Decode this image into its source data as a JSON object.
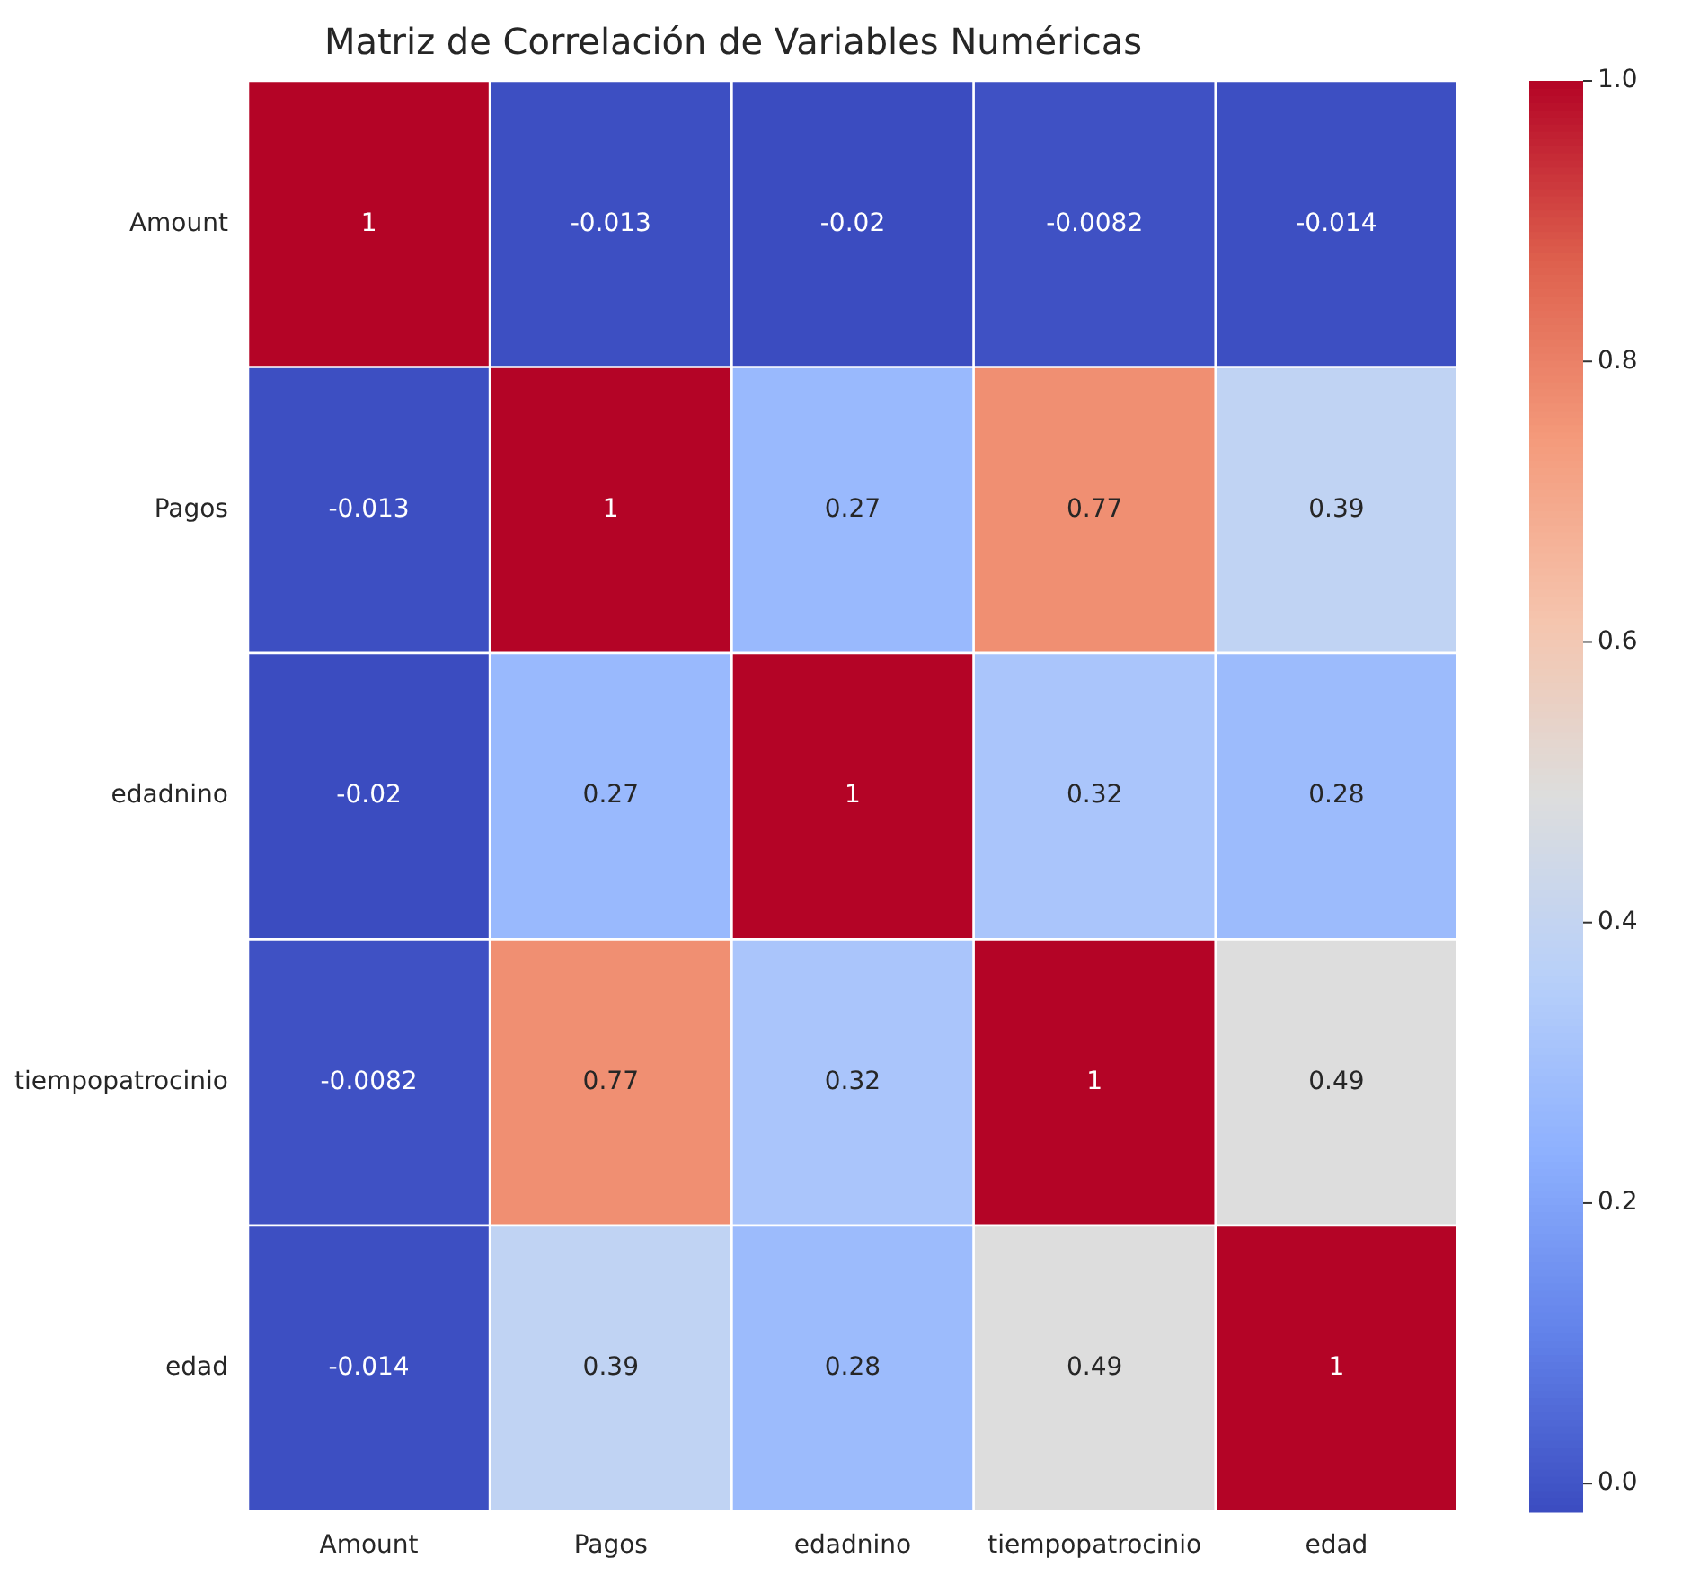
{
  "chart_data": {
    "type": "heatmap",
    "title": "Matriz de Correlación de Variables Numéricas",
    "categories": [
      "Amount",
      "Pagos",
      "edadnino",
      "tiempopatrocinio",
      "edad"
    ],
    "y_categories": [
      "Amount",
      "Pagos",
      "edadnino",
      "tiempopatrocinio",
      "edad"
    ],
    "cells": [
      [
        1,
        -0.013,
        -0.02,
        -0.0082,
        -0.014
      ],
      [
        -0.013,
        1,
        0.27,
        0.77,
        0.39
      ],
      [
        -0.02,
        0.27,
        1,
        0.32,
        0.28
      ],
      [
        -0.0082,
        0.77,
        0.32,
        1,
        0.49
      ],
      [
        -0.014,
        0.39,
        0.28,
        0.49,
        1
      ]
    ],
    "data_labels": true,
    "clim": [
      -0.02,
      1
    ],
    "cticks": [
      {
        "value": 0,
        "label": "0.0"
      },
      {
        "value": 0.2,
        "label": "0.2"
      },
      {
        "value": 0.4,
        "label": "0.4"
      },
      {
        "value": 0.6,
        "label": "0.6"
      },
      {
        "value": 0.8,
        "label": "0.8"
      },
      {
        "value": 1,
        "label": "1.0"
      }
    ]
  }
}
